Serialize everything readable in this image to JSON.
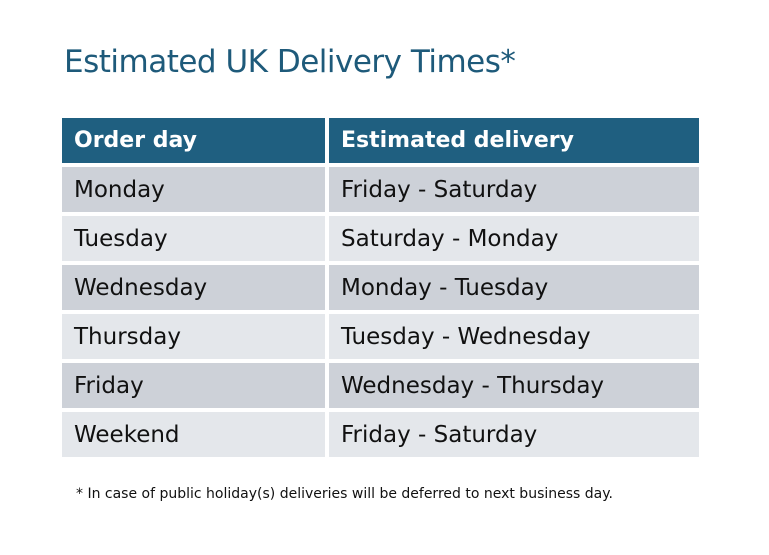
{
  "title": "Estimated UK Delivery Times*",
  "table": {
    "headers": [
      "Order day",
      "Estimated delivery"
    ],
    "rows": [
      [
        "Monday",
        "Friday - Saturday"
      ],
      [
        "Tuesday",
        "Saturday - Monday"
      ],
      [
        "Wednesday",
        "Monday - Tuesday"
      ],
      [
        "Thursday",
        "Tuesday - Wednesday"
      ],
      [
        "Friday",
        "Wednesday - Thursday"
      ],
      [
        "Weekend",
        "Friday - Saturday"
      ]
    ]
  },
  "footnote": "* In case of public holiday(s) deliveries will be deferred to next business day.",
  "colors": {
    "header": "#1f5f80",
    "title": "#1e5a7a",
    "row_odd": "#cdd1d8",
    "row_even": "#e4e7eb"
  }
}
